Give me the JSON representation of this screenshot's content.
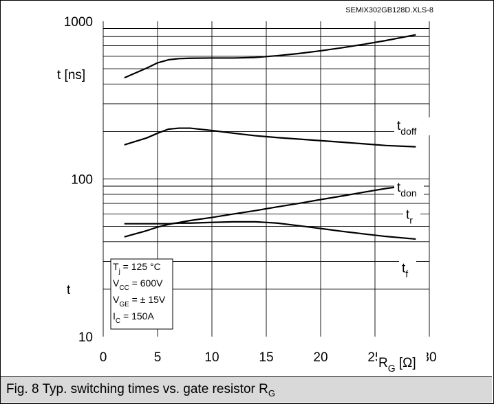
{
  "chart_data": {
    "type": "line",
    "source_label": "SEMiX302GB128D.XLS-8",
    "x": [
      2,
      4,
      5,
      6,
      7,
      8,
      10,
      12,
      14,
      16,
      18,
      20,
      22,
      24,
      26,
      28.7
    ],
    "series": [
      {
        "name": "t_doff",
        "values": [
          440,
          505,
          545,
          570,
          580,
          583,
          585,
          585,
          590,
          605,
          625,
          650,
          680,
          715,
          755,
          820
        ]
      },
      {
        "name": "t_don",
        "values": [
          165,
          182,
          195,
          207,
          210,
          210,
          203,
          195,
          188,
          183,
          179,
          175,
          171,
          167,
          163,
          160
        ]
      },
      {
        "name": "t_r",
        "values": [
          43,
          47,
          49.5,
          51.5,
          53,
          54.5,
          57,
          60,
          63,
          66.5,
          70,
          74,
          78,
          82.5,
          87,
          92
        ]
      },
      {
        "name": "t_f",
        "values": [
          52,
          52,
          52,
          52,
          52.5,
          52.5,
          53,
          53.5,
          53.5,
          52.5,
          50.5,
          48.5,
          46.5,
          44.8,
          43.2,
          41.6
        ]
      }
    ],
    "series_labels": [
      {
        "main": "t",
        "sub": "doff"
      },
      {
        "main": "t",
        "sub": "don"
      },
      {
        "main": "t",
        "sub": "r"
      },
      {
        "main": "t",
        "sub": "f"
      }
    ],
    "xlim": [
      0,
      30
    ],
    "ylim": [
      10,
      1000
    ],
    "yscale": "log",
    "x_ticks": [
      "0",
      "5",
      "10",
      "15",
      "20",
      "25",
      "30"
    ],
    "y_ticks": [
      "10",
      "100",
      "1000"
    ],
    "ylabel": "t [ns]",
    "ylabel_lower": "t",
    "xlabel": {
      "main": "R",
      "sub": "G",
      "unit": " [Ω]"
    },
    "grid": true,
    "conditions": [
      {
        "main": "T",
        "sub": "j",
        "rest": "   = 125 °C"
      },
      {
        "main": "V",
        "sub": "CC",
        "rest": " = 600V"
      },
      {
        "main": "V",
        "sub": "GE",
        "rest": " = ± 15V"
      },
      {
        "main": "I",
        "sub": "C",
        "rest": "    = 150A"
      }
    ]
  },
  "caption": {
    "text": "Fig. 8 Typ. switching times vs. gate resistor R",
    "sub": "G"
  }
}
